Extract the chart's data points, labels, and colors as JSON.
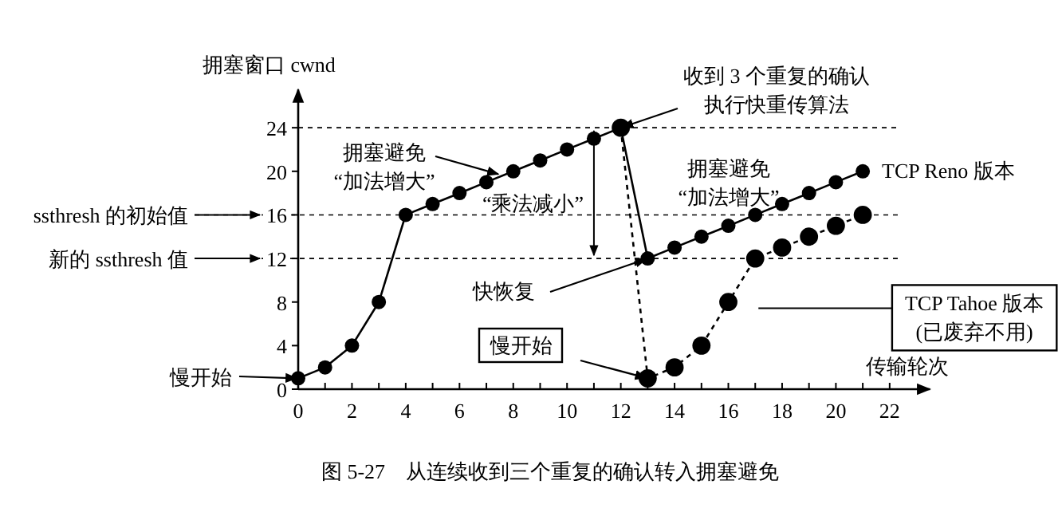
{
  "chart_data": {
    "type": "line",
    "xlabel": "传输轮次",
    "ylabel": "拥塞窗口 cwnd",
    "xlim": [
      0,
      23.5
    ],
    "ylim": [
      0,
      27.5
    ],
    "xticks": [
      0,
      {
        "value": 1,
        "label": null
      },
      2,
      {
        "value": 3,
        "label": null
      },
      4,
      {
        "value": 5,
        "label": null
      },
      6,
      {
        "value": 7,
        "label": null
      },
      8,
      {
        "value": 9,
        "label": null
      },
      10,
      {
        "value": 11,
        "label": null
      },
      12,
      {
        "value": 13,
        "label": null
      },
      14,
      {
        "value": 15,
        "label": null
      },
      16,
      {
        "value": 17,
        "label": null
      },
      18,
      {
        "value": 19,
        "label": null
      },
      20,
      {
        "value": 21,
        "label": null
      },
      22
    ],
    "yticks": [
      0,
      4,
      8,
      12,
      16,
      20,
      24
    ],
    "marker": "circle",
    "grid": false,
    "series": [
      {
        "name": "TCP Reno 版本",
        "color": "#000000",
        "line_style": "solid",
        "x": [
          0,
          1,
          2,
          3,
          4,
          5,
          6,
          7,
          8,
          9,
          10,
          11,
          12,
          13,
          14,
          15,
          16,
          17,
          18,
          19,
          20,
          21
        ],
        "values": [
          1,
          2,
          4,
          8,
          16,
          17,
          18,
          19,
          20,
          21,
          22,
          23,
          24,
          12,
          13,
          14,
          15,
          16,
          17,
          18,
          19,
          20
        ]
      },
      {
        "name": "TCP Tahoe 版本(已废弃不用)",
        "color": "#000000",
        "line_style": "dashed",
        "x": [
          12,
          13,
          14,
          15,
          16,
          17,
          18,
          19,
          20,
          21
        ],
        "values": [
          24,
          1,
          2,
          4,
          8,
          12,
          13,
          14,
          15,
          16
        ]
      }
    ],
    "ref_lines": [
      {
        "axis": "y",
        "value": 24,
        "label": null,
        "line_style": "dashed"
      },
      {
        "axis": "y",
        "value": 16,
        "label": "ssthresh 的初始值",
        "line_style": "dashed"
      },
      {
        "axis": "y",
        "value": 12,
        "label": "新的 ssthresh 值",
        "line_style": "dashed"
      }
    ],
    "annotations": [
      "慢开始",
      {
        "text": "拥塞避免“加法增大”",
        "x": 7.5,
        "y": 19.7
      },
      "“乘法减小”",
      {
        "text": "收到 3 个重复的确认执行快重传算法",
        "x": 12,
        "y": 24
      },
      "拥塞避免“加法增大”",
      {
        "text": "快恢复",
        "x": 13,
        "y": 12
      },
      "慢开始",
      "图 5-27　从连续收到三个重复的确认转入拥塞避免"
    ]
  }
}
